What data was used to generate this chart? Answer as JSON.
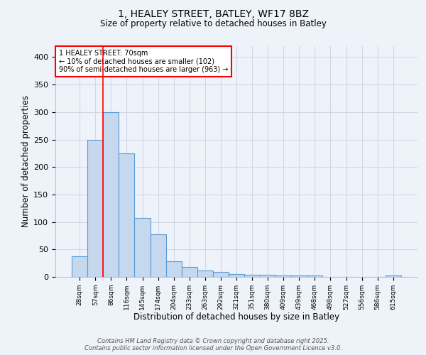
{
  "title_line1": "1, HEALEY STREET, BATLEY, WF17 8BZ",
  "title_line2": "Size of property relative to detached houses in Batley",
  "xlabel": "Distribution of detached houses by size in Batley",
  "ylabel": "Number of detached properties",
  "categories": [
    "28sqm",
    "57sqm",
    "86sqm",
    "116sqm",
    "145sqm",
    "174sqm",
    "204sqm",
    "233sqm",
    "263sqm",
    "292sqm",
    "321sqm",
    "351sqm",
    "380sqm",
    "409sqm",
    "439sqm",
    "468sqm",
    "498sqm",
    "527sqm",
    "556sqm",
    "586sqm",
    "615sqm"
  ],
  "values": [
    38,
    250,
    300,
    225,
    107,
    77,
    29,
    18,
    12,
    9,
    5,
    4,
    4,
    3,
    3,
    3,
    0,
    0,
    0,
    0,
    3
  ],
  "bar_color": "#c5d8ee",
  "bar_edge_color": "#5b9bd5",
  "grid_color": "#d0d8e8",
  "background_color": "#eef2f9",
  "red_line_x": 1.5,
  "annotation_text": "1 HEALEY STREET: 70sqm\n← 10% of detached houses are smaller (102)\n90% of semi-detached houses are larger (963) →",
  "annotation_box_color": "white",
  "annotation_box_edge_color": "red",
  "footnote_line1": "Contains HM Land Registry data © Crown copyright and database right 2025.",
  "footnote_line2": "Contains public sector information licensed under the Open Government Licence v3.0.",
  "ylim": [
    0,
    420
  ],
  "yticks": [
    0,
    50,
    100,
    150,
    200,
    250,
    300,
    350,
    400
  ]
}
